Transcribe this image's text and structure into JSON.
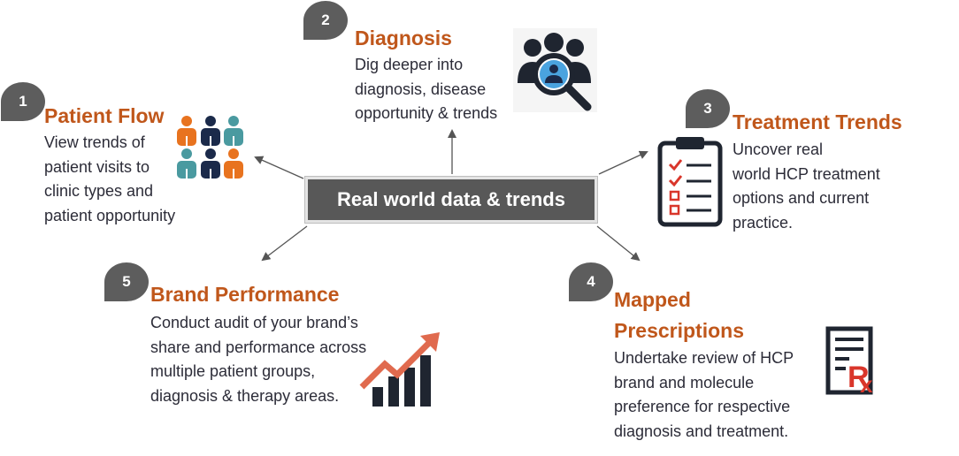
{
  "center": {
    "label": "Real world data & trends"
  },
  "items": [
    {
      "number": "1",
      "title": "Patient Flow",
      "lines": [
        "View trends of",
        "patient visits to",
        "clinic types and",
        "patient opportunity"
      ],
      "icon": "patient-group-icon"
    },
    {
      "number": "2",
      "title": "Diagnosis",
      "lines": [
        "Dig deeper into",
        "diagnosis, disease",
        "opportunity & trends"
      ],
      "icon": "people-search-icon"
    },
    {
      "number": "3",
      "title": "Treatment Trends",
      "lines": [
        "Uncover real",
        "world HCP treatment",
        "options and current",
        "practice."
      ],
      "icon": "checklist-clipboard-icon"
    },
    {
      "number": "4",
      "title_lines": [
        "Mapped",
        "Prescriptions"
      ],
      "lines": [
        "Undertake review of HCP",
        "brand and molecule",
        "preference for respective",
        "diagnosis and treatment."
      ],
      "icon": "rx-prescription-icon"
    },
    {
      "number": "5",
      "title": "Brand Performance",
      "lines": [
        "Conduct audit of your brand’s",
        "share and performance across",
        "multiple patient groups,",
        "diagnosis & therapy areas."
      ],
      "icon": "growth-chart-icon"
    }
  ],
  "colors": {
    "accent": "#c0571b",
    "badge": "#5d5d5d",
    "center_box": "#585858",
    "icon_orange": "#e8731f",
    "icon_navy": "#1b2a4a",
    "icon_teal": "#4a9aa0",
    "icon_red": "#d9362b"
  }
}
